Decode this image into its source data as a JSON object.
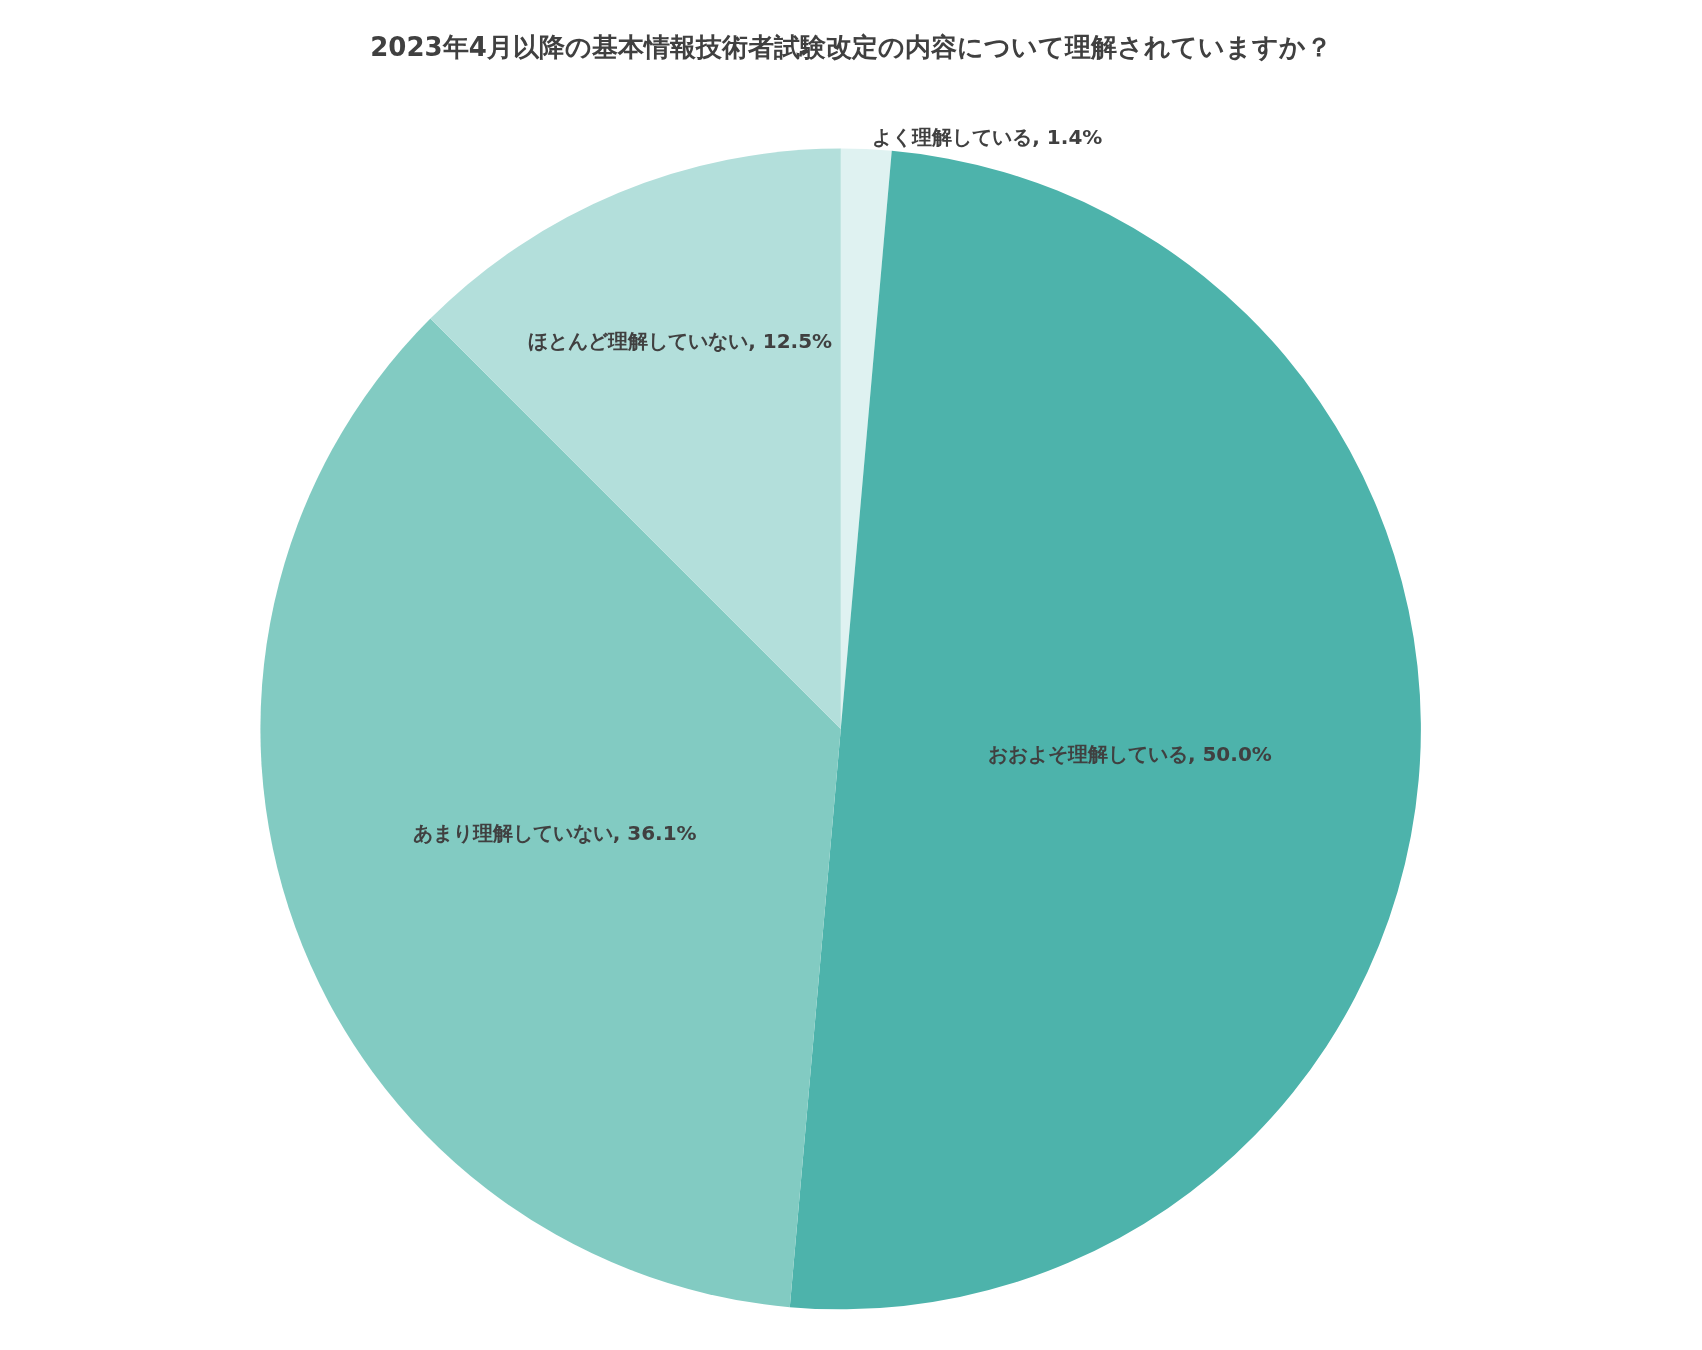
{
  "chart_data": {
    "type": "pie",
    "title": "2023年4月以降の基本情報技術者試験改定の内容について理解されていますか？",
    "categories": [
      "よく理解している",
      "おおよそ理解している",
      "あまり理解していない",
      "ほとんど理解していない"
    ],
    "values": [
      1.4,
      50.0,
      36.1,
      12.5
    ],
    "value_labels": [
      "1.4%",
      "50.0%",
      "36.1%",
      "12.5%"
    ],
    "colors": [
      "#dff2f1",
      "#4db3ab",
      "#82cbc2",
      "#b3dfdb"
    ]
  }
}
